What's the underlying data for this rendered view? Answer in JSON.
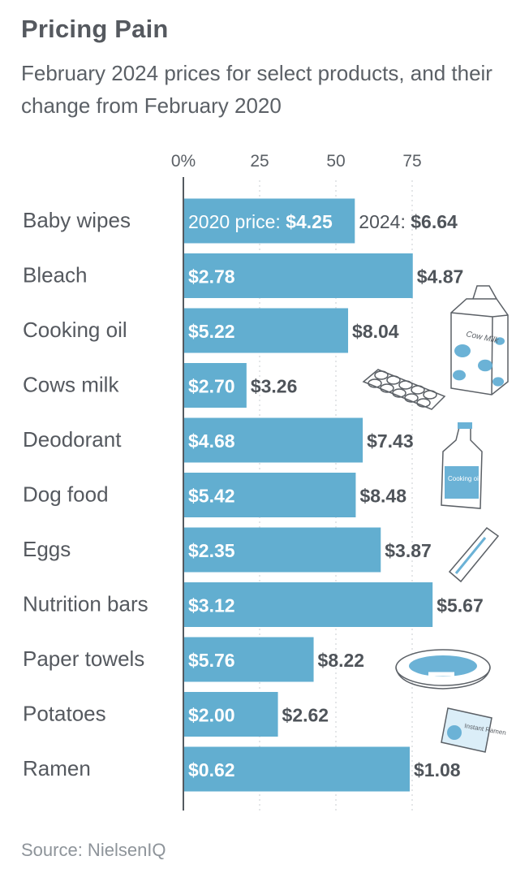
{
  "header": {
    "title": "Pricing Pain",
    "subtitle": "February 2024 prices for select products, and their change from February 2020"
  },
  "footer": {
    "source": "Source: NielsenIQ"
  },
  "colors": {
    "bar": "#62aed0",
    "axis": "#555a60",
    "grid": "#c9cdd2",
    "label": "#55595f",
    "value_2024": "#4f545a"
  },
  "chart_data": {
    "type": "bar",
    "orientation": "horizontal",
    "title": "Pricing Pain",
    "subtitle": "February 2024 prices for select products, and their change from February 2020",
    "xlabel": "",
    "ylabel": "",
    "xlim": [
      0,
      100
    ],
    "x_ticks": [
      0,
      25,
      50,
      75
    ],
    "x_tick_labels": [
      "0%",
      "25",
      "50",
      "75"
    ],
    "grid": false,
    "categories": [
      "Baby wipes",
      "Bleach",
      "Cooking oil",
      "Cows milk",
      "Deodorant",
      "Dog food",
      "Eggs",
      "Nutrition bars",
      "Paper towels",
      "Potatoes",
      "Ramen"
    ],
    "values": [
      56.2,
      75.2,
      54.0,
      20.7,
      58.8,
      56.5,
      64.7,
      81.7,
      42.7,
      31.0,
      74.2
    ],
    "value_unit": "percent change in price, Feb 2020 to Feb 2024",
    "price_2020_labels": [
      "$4.25",
      "$2.78",
      "$5.22",
      "$2.70",
      "$4.68",
      "$5.42",
      "$2.35",
      "$3.12",
      "$5.76",
      "$2.00",
      "$0.62"
    ],
    "price_2024_labels": [
      "$6.64",
      "$4.87",
      "$8.04",
      "$3.26",
      "$7.43",
      "$8.48",
      "$3.87",
      "$5.67",
      "$8.22",
      "$2.62",
      "$1.08"
    ],
    "first_row_prefix_2020": "2020 price: ",
    "first_row_prefix_2024": "2024: ",
    "illustrations": [
      "milk-carton-icon",
      "egg-carton-icon",
      "oil-bottle-icon",
      "nutrition-bar-icon",
      "dog-food-bowl-icon",
      "ramen-packet-icon"
    ],
    "illustration_texts": [
      "Cow Milk",
      "Cooking oil",
      "Instant Ramen"
    ]
  }
}
